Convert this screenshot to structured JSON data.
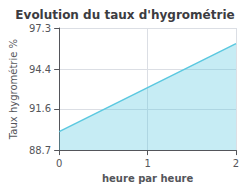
{
  "chart_data": {
    "type": "line",
    "title": "Evolution du taux d'hygrométrie",
    "xlabel": "heure par heure",
    "ylabel": "Taux hygrométrie %",
    "x": [
      0,
      2
    ],
    "values": [
      90.0,
      96.2
    ],
    "color": "#5bc8e0",
    "xlim": [
      0,
      2
    ],
    "ylim": [
      88.7,
      97.3
    ],
    "xticks": [
      0,
      1,
      2
    ],
    "yticks": [
      88.7,
      91.6,
      94.4,
      97.3
    ],
    "grid": true
  }
}
